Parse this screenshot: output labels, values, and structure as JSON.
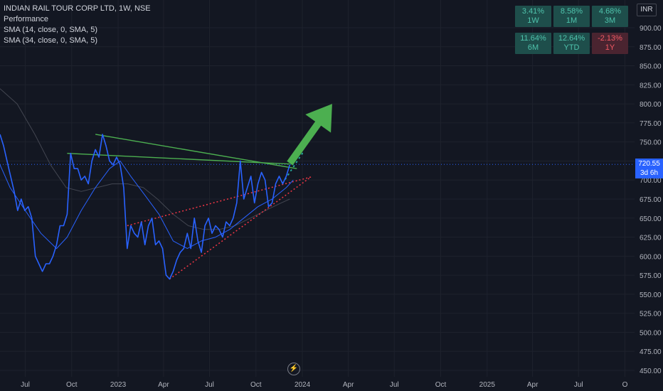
{
  "legend": {
    "title": "INDIAN RAIL TOUR CORP LTD, 1W, NSE",
    "line2": "Performance",
    "line3": "SMA (14, close, 0, SMA, 5)",
    "line4": "SMA (34, close, 0, SMA, 5)"
  },
  "performance": [
    {
      "value": "3.41%",
      "period": "1W",
      "sign": "pos"
    },
    {
      "value": "8.58%",
      "period": "1M",
      "sign": "pos"
    },
    {
      "value": "4.68%",
      "period": "3M",
      "sign": "pos"
    },
    {
      "value": "11.64%",
      "period": "6M",
      "sign": "pos"
    },
    {
      "value": "12.64%",
      "period": "YTD",
      "sign": "pos"
    },
    {
      "value": "-2.13%",
      "period": "1Y",
      "sign": "neg"
    }
  ],
  "currency": "INR",
  "price_tag": {
    "price": "720.55",
    "countdown": "3d 6h"
  },
  "colors": {
    "background": "#131722",
    "price_line": "#2962ff",
    "sma14": "#2962ff",
    "sma34": "#434651",
    "trendline_green": "#4caf50",
    "trendline_red": "#f23645",
    "arrow": "#4caf50"
  },
  "chart_data": {
    "type": "line",
    "y_ticks": [
      900,
      875,
      850,
      825,
      800,
      775,
      750,
      725,
      700,
      675,
      650,
      625,
      600,
      575,
      550,
      525,
      500,
      475,
      450
    ],
    "y_tick_labels": [
      "900.00",
      "875.00",
      "850.00",
      "825.00",
      "800.00",
      "775.00",
      "750.00",
      "725.00",
      "700.00",
      "675.00",
      "650.00",
      "625.00",
      "600.00",
      "575.00",
      "550.00",
      "525.00",
      "500.00",
      "475.00",
      "450.00"
    ],
    "ylim": [
      445,
      915
    ],
    "x_tick_labels": [
      "Jul",
      "Oct",
      "2023",
      "Apr",
      "Jul",
      "Oct",
      "2024",
      "Apr",
      "Jul",
      "Oct",
      "2025",
      "Apr",
      "Jul",
      "O"
    ],
    "x_tick_dates": [
      "2022-07-01",
      "2022-10-01",
      "2023-01-01",
      "2023-04-01",
      "2023-07-01",
      "2023-10-01",
      "2024-01-01",
      "2024-04-01",
      "2024-07-01",
      "2024-10-01",
      "2025-01-01",
      "2025-04-01",
      "2025-07-01",
      "2025-10-01"
    ],
    "xlim": [
      "2022-05-12",
      "2025-10-20"
    ],
    "series": [
      {
        "key": "price",
        "points": [
          [
            "2022-05-12",
            760
          ],
          [
            "2022-05-19",
            745
          ],
          [
            "2022-05-26",
            725
          ],
          [
            "2022-06-02",
            705
          ],
          [
            "2022-06-09",
            685
          ],
          [
            "2022-06-16",
            660
          ],
          [
            "2022-06-23",
            675
          ],
          [
            "2022-06-30",
            660
          ],
          [
            "2022-07-07",
            665
          ],
          [
            "2022-07-14",
            650
          ],
          [
            "2022-07-21",
            600
          ],
          [
            "2022-07-28",
            590
          ],
          [
            "2022-08-04",
            580
          ],
          [
            "2022-08-11",
            590
          ],
          [
            "2022-08-18",
            590
          ],
          [
            "2022-08-25",
            600
          ],
          [
            "2022-09-01",
            615
          ],
          [
            "2022-09-08",
            640
          ],
          [
            "2022-09-15",
            640
          ],
          [
            "2022-09-22",
            655
          ],
          [
            "2022-09-29",
            735
          ],
          [
            "2022-10-06",
            715
          ],
          [
            "2022-10-13",
            715
          ],
          [
            "2022-10-20",
            700
          ],
          [
            "2022-10-27",
            705
          ],
          [
            "2022-11-03",
            695
          ],
          [
            "2022-11-10",
            725
          ],
          [
            "2022-11-17",
            740
          ],
          [
            "2022-11-24",
            730
          ],
          [
            "2022-12-01",
            760
          ],
          [
            "2022-12-08",
            745
          ],
          [
            "2022-12-15",
            725
          ],
          [
            "2022-12-22",
            720
          ],
          [
            "2022-12-29",
            730
          ],
          [
            "2023-01-05",
            720
          ],
          [
            "2023-01-12",
            690
          ],
          [
            "2023-01-19",
            610
          ],
          [
            "2023-01-26",
            640
          ],
          [
            "2023-02-02",
            630
          ],
          [
            "2023-02-09",
            625
          ],
          [
            "2023-02-16",
            645
          ],
          [
            "2023-02-23",
            615
          ],
          [
            "2023-03-02",
            640
          ],
          [
            "2023-03-09",
            650
          ],
          [
            "2023-03-16",
            615
          ],
          [
            "2023-03-23",
            620
          ],
          [
            "2023-03-30",
            610
          ],
          [
            "2023-04-06",
            575
          ],
          [
            "2023-04-13",
            570
          ],
          [
            "2023-04-20",
            580
          ],
          [
            "2023-04-27",
            595
          ],
          [
            "2023-05-04",
            605
          ],
          [
            "2023-05-11",
            610
          ],
          [
            "2023-05-18",
            630
          ],
          [
            "2023-05-25",
            610
          ],
          [
            "2023-06-01",
            650
          ],
          [
            "2023-06-08",
            620
          ],
          [
            "2023-06-15",
            605
          ],
          [
            "2023-06-22",
            640
          ],
          [
            "2023-06-29",
            650
          ],
          [
            "2023-07-06",
            630
          ],
          [
            "2023-07-13",
            640
          ],
          [
            "2023-07-20",
            635
          ],
          [
            "2023-07-27",
            625
          ],
          [
            "2023-08-03",
            645
          ],
          [
            "2023-08-10",
            640
          ],
          [
            "2023-08-17",
            650
          ],
          [
            "2023-08-24",
            670
          ],
          [
            "2023-08-31",
            725
          ],
          [
            "2023-09-07",
            675
          ],
          [
            "2023-09-14",
            690
          ],
          [
            "2023-09-21",
            705
          ],
          [
            "2023-09-28",
            670
          ],
          [
            "2023-10-05",
            695
          ],
          [
            "2023-10-12",
            710
          ],
          [
            "2023-10-19",
            700
          ],
          [
            "2023-10-26",
            665
          ],
          [
            "2023-11-02",
            670
          ],
          [
            "2023-11-09",
            695
          ],
          [
            "2023-11-16",
            705
          ],
          [
            "2023-11-23",
            695
          ],
          [
            "2023-11-30",
            705
          ],
          [
            "2023-12-07",
            720
          ]
        ]
      },
      {
        "key": "sma14",
        "points": [
          [
            "2022-05-12",
            720
          ],
          [
            "2022-06-01",
            690
          ],
          [
            "2022-07-01",
            660
          ],
          [
            "2022-08-01",
            630
          ],
          [
            "2022-09-01",
            610
          ],
          [
            "2022-09-22",
            625
          ],
          [
            "2022-10-20",
            660
          ],
          [
            "2022-11-17",
            690
          ],
          [
            "2022-12-15",
            715
          ],
          [
            "2023-01-05",
            725
          ],
          [
            "2023-01-26",
            705
          ],
          [
            "2023-02-23",
            680
          ],
          [
            "2023-03-23",
            655
          ],
          [
            "2023-04-20",
            620
          ],
          [
            "2023-05-18",
            610
          ],
          [
            "2023-06-15",
            620
          ],
          [
            "2023-07-13",
            625
          ],
          [
            "2023-08-10",
            635
          ],
          [
            "2023-09-07",
            650
          ],
          [
            "2023-10-05",
            665
          ],
          [
            "2023-11-02",
            675
          ],
          [
            "2023-11-30",
            690
          ],
          [
            "2023-12-14",
            700
          ]
        ]
      },
      {
        "key": "sma34",
        "points": [
          [
            "2022-05-12",
            820
          ],
          [
            "2022-06-15",
            800
          ],
          [
            "2022-07-20",
            760
          ],
          [
            "2022-08-20",
            720
          ],
          [
            "2022-09-20",
            690
          ],
          [
            "2022-10-20",
            685
          ],
          [
            "2022-11-20",
            690
          ],
          [
            "2022-12-20",
            695
          ],
          [
            "2023-01-20",
            695
          ],
          [
            "2023-02-20",
            690
          ],
          [
            "2023-03-20",
            675
          ],
          [
            "2023-04-20",
            655
          ],
          [
            "2023-05-20",
            640
          ],
          [
            "2023-06-20",
            635
          ],
          [
            "2023-07-20",
            635
          ],
          [
            "2023-08-20",
            640
          ],
          [
            "2023-09-20",
            650
          ],
          [
            "2023-10-20",
            660
          ],
          [
            "2023-11-20",
            670
          ],
          [
            "2023-12-07",
            675
          ]
        ]
      }
    ],
    "annotations": {
      "green_lines": [
        [
          [
            "2022-09-22",
            735
          ],
          [
            "2023-12-07",
            721
          ]
        ],
        [
          [
            "2022-11-17",
            760
          ],
          [
            "2023-12-21",
            715
          ]
        ]
      ],
      "red_dotted_lines": [
        [
          [
            "2023-01-19",
            640
          ],
          [
            "2024-01-18",
            704
          ]
        ],
        [
          [
            "2023-04-13",
            570
          ],
          [
            "2024-01-18",
            704
          ]
        ]
      ],
      "green_dotted_projection": [
        [
          "2023-11-23",
          696
        ],
        [
          "2024-01-04",
          738
        ]
      ],
      "arrow": [
        [
          "2023-12-07",
          722
        ],
        [
          "2024-02-29",
          800
        ]
      ],
      "price_line_level": 720.55
    }
  }
}
